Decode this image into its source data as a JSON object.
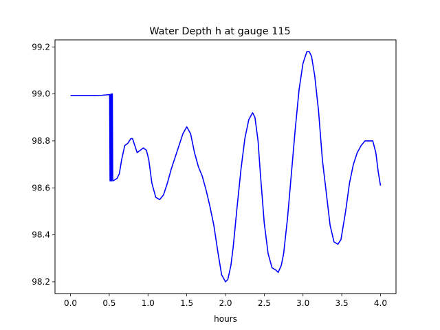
{
  "chart_data": {
    "type": "line",
    "title": "Water Depth h at gauge 115",
    "xlabel": "hours",
    "ylabel": "",
    "xlim": [
      -0.2,
      4.2
    ],
    "ylim": [
      98.15,
      99.23
    ],
    "xticks": [
      0.0,
      0.5,
      1.0,
      1.5,
      2.0,
      2.5,
      3.0,
      3.5,
      4.0
    ],
    "xtick_labels": [
      "0.0",
      "0.5",
      "1.0",
      "1.5",
      "2.0",
      "2.5",
      "3.0",
      "3.5",
      "4.0"
    ],
    "yticks": [
      98.2,
      98.4,
      98.6,
      98.8,
      99.0,
      99.2
    ],
    "ytick_labels": [
      "98.2",
      "98.4",
      "98.6",
      "98.8",
      "99.0",
      "99.2"
    ],
    "grid": false,
    "series": [
      {
        "color": "#0000ff",
        "x": [
          0.0,
          0.1,
          0.2,
          0.3,
          0.4,
          0.5,
          0.505,
          0.51,
          0.515,
          0.52,
          0.525,
          0.53,
          0.535,
          0.54,
          0.545,
          0.55,
          0.6,
          0.63,
          0.66,
          0.7,
          0.74,
          0.78,
          0.8,
          0.83,
          0.86,
          0.9,
          0.94,
          0.98,
          1.01,
          1.05,
          1.1,
          1.15,
          1.2,
          1.25,
          1.3,
          1.35,
          1.4,
          1.45,
          1.5,
          1.55,
          1.6,
          1.65,
          1.7,
          1.75,
          1.8,
          1.85,
          1.9,
          1.95,
          2.0,
          2.03,
          2.07,
          2.1,
          2.15,
          2.2,
          2.25,
          2.3,
          2.35,
          2.38,
          2.42,
          2.45,
          2.5,
          2.55,
          2.6,
          2.65,
          2.68,
          2.72,
          2.75,
          2.8,
          2.85,
          2.9,
          2.95,
          3.0,
          3.05,
          3.08,
          3.11,
          3.15,
          3.2,
          3.25,
          3.3,
          3.35,
          3.4,
          3.45,
          3.49,
          3.55,
          3.6,
          3.65,
          3.7,
          3.75,
          3.8,
          3.85,
          3.9,
          3.94,
          3.97,
          4.0
        ],
        "y": [
          98.993,
          98.993,
          98.993,
          98.993,
          98.994,
          98.997,
          98.997,
          98.63,
          98.998,
          98.63,
          98.999,
          98.63,
          99.0,
          99.0,
          98.63,
          98.63,
          98.64,
          98.66,
          98.72,
          98.78,
          98.79,
          98.81,
          98.81,
          98.78,
          98.75,
          98.76,
          98.77,
          98.76,
          98.72,
          98.62,
          98.56,
          98.55,
          98.57,
          98.62,
          98.68,
          98.73,
          98.78,
          98.83,
          98.86,
          98.83,
          98.75,
          98.69,
          98.65,
          98.59,
          98.52,
          98.44,
          98.33,
          98.23,
          98.2,
          98.21,
          98.27,
          98.35,
          98.52,
          98.68,
          98.81,
          98.89,
          98.92,
          98.9,
          98.8,
          98.66,
          98.45,
          98.32,
          98.26,
          98.25,
          98.24,
          98.27,
          98.32,
          98.47,
          98.66,
          98.85,
          99.02,
          99.13,
          99.18,
          99.18,
          99.16,
          99.08,
          98.93,
          98.72,
          98.58,
          98.44,
          98.37,
          98.36,
          98.38,
          98.5,
          98.62,
          98.7,
          98.75,
          98.78,
          98.8,
          98.8,
          98.8,
          98.75,
          98.67,
          98.61
        ]
      }
    ]
  }
}
